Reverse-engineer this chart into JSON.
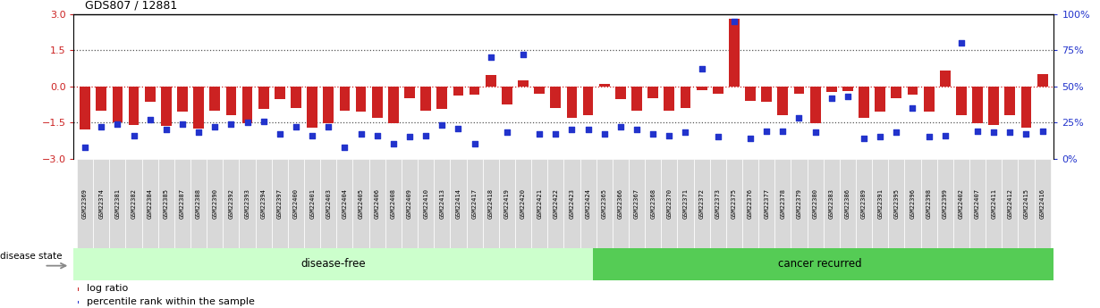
{
  "title": "GDS807 / 12881",
  "samples": [
    "GSM22369",
    "GSM22374",
    "GSM22381",
    "GSM22382",
    "GSM22384",
    "GSM22385",
    "GSM22387",
    "GSM22388",
    "GSM22390",
    "GSM22392",
    "GSM22393",
    "GSM22394",
    "GSM22397",
    "GSM22400",
    "GSM22401",
    "GSM22403",
    "GSM22404",
    "GSM22405",
    "GSM22406",
    "GSM22408",
    "GSM22409",
    "GSM22410",
    "GSM22413",
    "GSM22414",
    "GSM22417",
    "GSM22418",
    "GSM22419",
    "GSM22420",
    "GSM22421",
    "GSM22422",
    "GSM22423",
    "GSM22424",
    "GSM22365",
    "GSM22366",
    "GSM22367",
    "GSM22368",
    "GSM22370",
    "GSM22371",
    "GSM22372",
    "GSM22373",
    "GSM22375",
    "GSM22376",
    "GSM22377",
    "GSM22378",
    "GSM22379",
    "GSM22380",
    "GSM22383",
    "GSM22386",
    "GSM22389",
    "GSM22391",
    "GSM22395",
    "GSM22396",
    "GSM22398",
    "GSM22399",
    "GSM22402",
    "GSM22407",
    "GSM22411",
    "GSM22412",
    "GSM22415",
    "GSM22416"
  ],
  "log_ratio": [
    -1.8,
    -1.0,
    -1.5,
    -1.6,
    -0.65,
    -1.65,
    -1.05,
    -1.75,
    -1.0,
    -1.2,
    -1.55,
    -0.95,
    -0.55,
    -0.9,
    -1.7,
    -1.55,
    -1.0,
    -1.05,
    -1.3,
    -1.55,
    -0.5,
    -1.0,
    -0.95,
    -0.4,
    -0.35,
    0.45,
    -0.75,
    0.25,
    -0.3,
    -0.9,
    -1.3,
    -1.2,
    0.1,
    -0.55,
    -1.0,
    -0.5,
    -1.0,
    -0.9,
    -0.15,
    -0.3,
    2.8,
    -0.6,
    -0.65,
    -1.2,
    -0.3,
    -1.55,
    -0.25,
    -0.2,
    -1.3,
    -1.05,
    -0.5,
    -0.35,
    -1.05,
    0.65,
    -1.2,
    -1.55,
    -1.6,
    -1.2,
    -1.7,
    0.5
  ],
  "percentile": [
    8,
    22,
    24,
    16,
    27,
    20,
    24,
    18,
    22,
    24,
    25,
    26,
    17,
    22,
    16,
    22,
    8,
    17,
    16,
    10,
    15,
    16,
    23,
    21,
    10,
    70,
    18,
    72,
    17,
    17,
    20,
    20,
    17,
    22,
    20,
    17,
    16,
    18,
    62,
    15,
    95,
    14,
    19,
    19,
    28,
    18,
    42,
    43,
    14,
    15,
    18,
    35,
    15,
    16,
    80,
    19,
    18,
    18,
    17,
    19
  ],
  "disease_free_count": 32,
  "ylim_left": [
    -3,
    3
  ],
  "ylim_right": [
    0,
    100
  ],
  "yticks_left": [
    -3,
    -1.5,
    0,
    1.5,
    3
  ],
  "yticks_right": [
    0,
    25,
    50,
    75,
    100
  ],
  "hlines": [
    -1.5,
    0,
    1.5
  ],
  "bar_color": "#cc2222",
  "dot_color": "#2233cc",
  "disease_free_bg": "#ccffcc",
  "cancer_recurred_bg": "#55cc55",
  "left_tick_color": "#cc2222",
  "right_tick_color": "#2233cc",
  "legend_log_ratio": "log ratio",
  "legend_percentile": "percentile rank within the sample",
  "disease_state_label": "disease state",
  "disease_free_label": "disease-free",
  "cancer_recurred_label": "cancer recurred"
}
